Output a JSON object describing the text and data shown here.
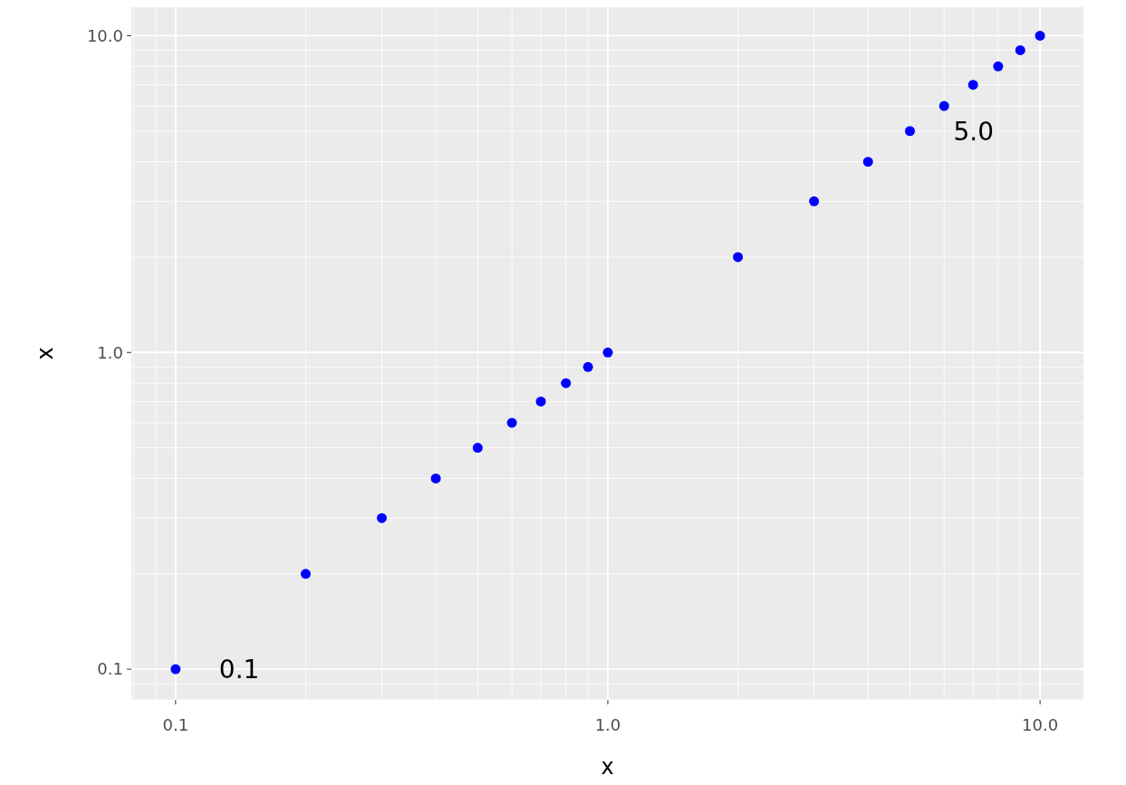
{
  "chart_data": {
    "type": "scatter",
    "xlabel": "x",
    "ylabel": "x",
    "x": [
      0.1,
      0.2,
      0.3,
      0.4,
      0.5,
      0.6,
      0.7,
      0.8,
      0.9,
      1,
      2,
      3,
      4,
      5,
      6,
      7,
      8,
      9,
      10
    ],
    "series": [
      {
        "color": "#0000ff",
        "values": [
          0.1,
          0.2,
          0.3,
          0.4,
          0.5,
          0.6,
          0.7,
          0.8,
          0.9,
          1,
          2,
          3,
          4,
          5,
          6,
          7,
          8,
          9,
          10
        ]
      }
    ],
    "xlim": [
      0.079,
      12.6
    ],
    "ylim": [
      0.08,
      12.3
    ],
    "xticks": [
      0.1,
      {
        "value": 1,
        "label": "1.0"
      },
      {
        "value": 10,
        "label": "10.0"
      }
    ],
    "yticks": [
      0.1,
      {
        "value": 1,
        "label": "1.0"
      },
      {
        "value": 10,
        "label": "10.0"
      }
    ],
    "log": "xy",
    "grid": true,
    "marker": "circle",
    "annotations": [
      {
        "text": "0.1",
        "x": 0.1,
        "y": 0.1
      },
      {
        "text": "5.0",
        "x": 5,
        "y": 5
      }
    ]
  }
}
